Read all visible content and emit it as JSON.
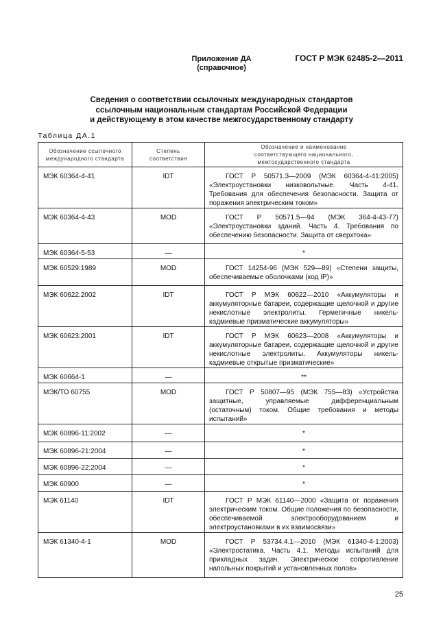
{
  "header": {
    "doc_code": "ГОСТ Р МЭК 62485-2—2011"
  },
  "annex": {
    "title": "Приложение ДА",
    "subtitle": "(справочное)"
  },
  "heading": {
    "lines": [
      "Сведения о соответствии ссылочных международных стандартов",
      "ссылочным национальным стандартам Российской Федерации",
      "и действующему в этом качестве межгосударственному стандарту"
    ]
  },
  "table": {
    "caption": "Таблица ДА.1",
    "columns": [
      "Обозначение ссылочного международного стандарта",
      "Степень соответствия",
      "Обозначение и наименование соответствующего национального, межгосударственного стандарта"
    ],
    "rows": [
      {
        "ref": "МЭК 60364-4-41",
        "degree": "IDT",
        "national": "ГОСТ Р 50571.3—2009 (МЭК 60364-4-41:2005) «Электроустановки низковольтные. Часть 4-41. Требования для обеспечения безопасности. Защита от поражения электрическим током»"
      },
      {
        "ref": "МЭК 60364-4-43",
        "degree": "MOD",
        "national": "ГОСТ Р 50571.5—94 (МЭК 364-4-43-77) «Электроустановки зданий. Часть 4. Требования по обеспечению безопасности. Защита от сверхтока»"
      },
      {
        "ref": "МЭК 60364-5-53",
        "degree": "—",
        "national": "*"
      },
      {
        "ref": "МЭК 60529:1989",
        "degree": "MOD",
        "national": "ГОСТ 14254-96 (МЭК 529—89) «Степени защиты, обеспечиваемые оболочками (код IP)»"
      },
      {
        "ref": "МЭК 60622:2002",
        "degree": "IDT",
        "national": "ГОСТ Р МЭК 60622—2010 «Аккумуляторы и аккумуляторные батареи, содержащие щелочной и другие некислотные электролиты. Герметичные никель-кадмиевые призматические аккумуляторы»"
      },
      {
        "ref": "МЭК 60623:2001",
        "degree": "IDT",
        "national": "ГОСТ Р МЭК 60623—2008 «Аккумуляторы и аккумуляторные батареи, содержащие щелочной и другие некислотные электролиты. Аккумуляторы никель-кадмиевые открытые призматические»"
      },
      {
        "ref": "МЭК 60664-1",
        "degree": "—",
        "national": "**"
      },
      {
        "ref": "МЭК/ТО 60755",
        "degree": "MOD",
        "national": "ГОСТ Р 50807—95 (МЭК 755—83) «Устройства защитные, управляемые дифференциальным (остаточным) током. Общие требования и методы испытаний»"
      },
      {
        "ref": "МЭК 60896-11:2002",
        "degree": "—",
        "national": "*"
      },
      {
        "ref": "МЭК 60896-21:2004",
        "degree": "—",
        "national": "*"
      },
      {
        "ref": "МЭК 60896-22:2004",
        "degree": "—",
        "national": "*"
      },
      {
        "ref": "МЭК 60900",
        "degree": "—",
        "national": "*"
      },
      {
        "ref": "МЭК 61140",
        "degree": "IDT",
        "national": "ГОСТ Р МЭК 61140—2000 «Защита от поражения электрическим током. Общие положения по безопасности, обеспечиваемой электрооборудованием и электроустановками в их взаимосвязи»"
      },
      {
        "ref": "МЭК 61340-4-1",
        "degree": "MOD",
        "national": "ГОСТ Р 53734.4.1—2010 (МЭК 61340-4-1:2003) «Электростатика. Часть 4.1. Методы испытаний для прикладных задач. Электрическое сопротивление напольных покрытий и установленных полов»"
      }
    ]
  },
  "footer": {
    "page_number": "25"
  }
}
